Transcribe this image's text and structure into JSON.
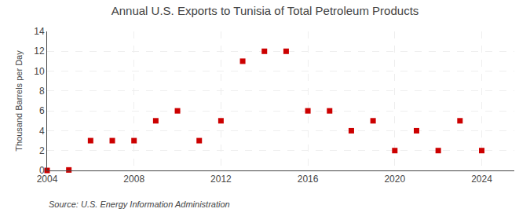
{
  "chart_data": {
    "type": "scatter",
    "title": "Annual U.S. Exports to Tunisia of Total Petroleum Products",
    "ylabel": "Thousand Barrels per Day",
    "annotations": [
      "Source: U.S. Energy Information Administration"
    ],
    "x": [
      2004,
      2005,
      2006,
      2007,
      2008,
      2009,
      2010,
      2011,
      2012,
      2013,
      2014,
      2015,
      2016,
      2017,
      2018,
      2019,
      2020,
      2021,
      2022,
      2023,
      2024
    ],
    "values": [
      0.0,
      0.05,
      3.0,
      3.0,
      3.0,
      5.0,
      6.0,
      3.0,
      5.0,
      11.0,
      12.0,
      12.0,
      6.0,
      6.0,
      4.0,
      5.0,
      2.0,
      4.0,
      2.0,
      5.0,
      2.0
    ],
    "color": "#cc0000",
    "marker": "square",
    "xlim": [
      2004,
      2025.5
    ],
    "ylim": [
      0,
      14
    ],
    "xticks": [
      2004,
      2008,
      2012,
      2016,
      2020,
      2024
    ],
    "yticks": [
      0,
      2,
      4,
      6,
      8,
      10,
      12,
      14
    ],
    "grid": true
  }
}
